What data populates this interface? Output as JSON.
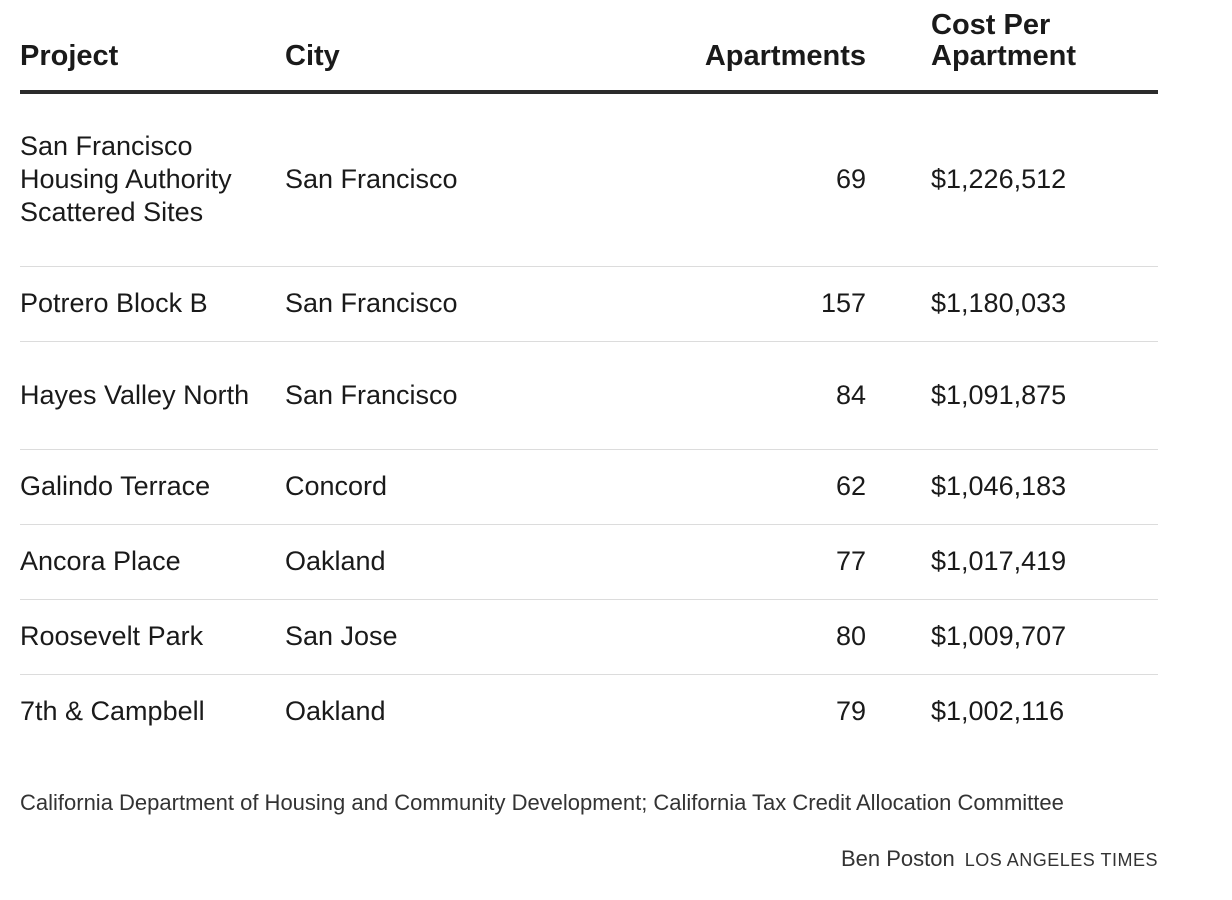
{
  "chart_data": {
    "type": "table",
    "columns": [
      "Project",
      "City",
      "Apartments",
      "Cost Per Apartment"
    ],
    "rows": [
      {
        "project": "San Francisco Housing Authority Scattered Sites",
        "city": "San Francisco",
        "apartments": "69",
        "cost": "$1,226,512"
      },
      {
        "project": "Potrero Block B",
        "city": "San Francisco",
        "apartments": "157",
        "cost": "$1,180,033"
      },
      {
        "project": "Hayes Valley North",
        "city": "San Francisco",
        "apartments": "84",
        "cost": "$1,091,875"
      },
      {
        "project": "Galindo Terrace",
        "city": "Concord",
        "apartments": "62",
        "cost": "$1,046,183"
      },
      {
        "project": "Ancora Place",
        "city": "Oakland",
        "apartments": "77",
        "cost": "$1,017,419"
      },
      {
        "project": "Roosevelt Park",
        "city": "San Jose",
        "apartments": "80",
        "cost": "$1,009,707"
      },
      {
        "project": "7th & Campbell",
        "city": "Oakland",
        "apartments": "79",
        "cost": "$1,002,116"
      }
    ],
    "source": "California Department of Housing and Community Development; California Tax Credit Allocation Committee",
    "byline": "Ben Poston",
    "organization": "LOS ANGELES TIMES"
  }
}
